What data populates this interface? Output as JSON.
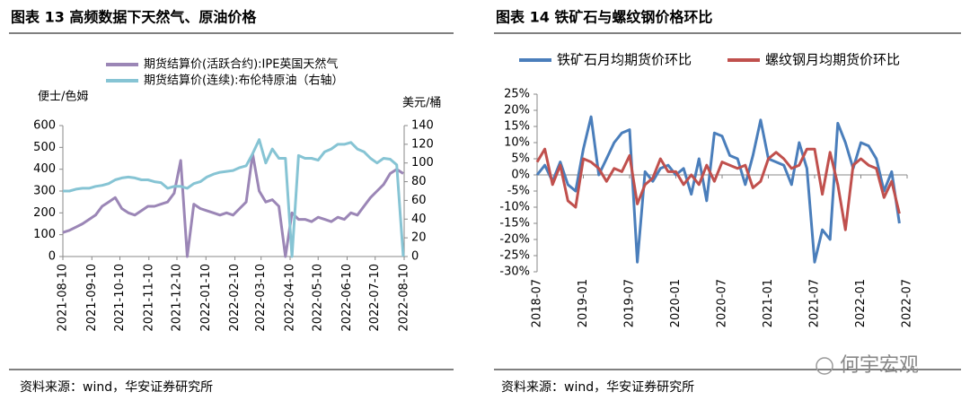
{
  "chart_data": [
    {
      "type": "line",
      "title": "图表 13 高频数据下天然气、原油价格",
      "ylabel": "便士/色姆",
      "y2label": "美元/桶",
      "x": [
        "2021-08-10",
        "2021-08-17",
        "2021-08-24",
        "2021-08-31",
        "2021-09-07",
        "2021-09-14",
        "2021-09-21",
        "2021-09-28",
        "2021-10-05",
        "2021-10-12",
        "2021-10-19",
        "2021-10-26",
        "2021-11-02",
        "2021-11-09",
        "2021-11-16",
        "2021-11-23",
        "2021-11-30",
        "2021-12-07",
        "2021-12-14",
        "2021-12-21",
        "2021-12-28",
        "2022-01-04",
        "2022-01-11",
        "2022-01-18",
        "2022-01-25",
        "2022-02-01",
        "2022-02-08",
        "2022-02-15",
        "2022-02-22",
        "2022-03-01",
        "2022-03-08",
        "2022-03-15",
        "2022-03-22",
        "2022-03-29",
        "2022-04-05",
        "2022-04-12",
        "2022-04-19",
        "2022-04-26",
        "2022-05-03",
        "2022-05-10",
        "2022-05-17",
        "2022-05-24",
        "2022-05-31",
        "2022-06-07",
        "2022-06-14",
        "2022-06-21",
        "2022-06-28",
        "2022-07-05",
        "2022-07-12",
        "2022-07-19",
        "2022-07-26",
        "2022-08-02",
        "2022-08-09"
      ],
      "series": [
        {
          "name": "期货结算价(活跃合约):IPE英国天然气",
          "color": "#9b86b6",
          "values": [
            110,
            120,
            135,
            150,
            170,
            190,
            230,
            250,
            270,
            220,
            200,
            190,
            210,
            230,
            230,
            240,
            250,
            290,
            440,
            0,
            240,
            220,
            210,
            200,
            190,
            200,
            190,
            220,
            250,
            470,
            300,
            250,
            260,
            230,
            0,
            200,
            170,
            170,
            160,
            180,
            170,
            160,
            180,
            170,
            200,
            190,
            230,
            270,
            300,
            330,
            380,
            400,
            380
          ]
        },
        {
          "name": "期货结算价(连续):布伦特原油（右轴）",
          "color": "#86c4d4",
          "axis": "y2",
          "values": [
            70,
            70,
            72,
            73,
            73,
            75,
            76,
            78,
            82,
            84,
            85,
            84,
            82,
            82,
            80,
            79,
            73,
            75,
            75,
            73,
            78,
            80,
            85,
            88,
            90,
            91,
            92,
            95,
            97,
            110,
            125,
            100,
            115,
            105,
            105,
            0,
            108,
            105,
            105,
            103,
            112,
            115,
            120,
            120,
            122,
            115,
            112,
            105,
            100,
            105,
            104,
            98,
            0
          ]
        }
      ],
      "xlim": [
        "2021-08-10",
        "2022-08-10"
      ],
      "xticks": [
        "2021-08-10",
        "2021-09-10",
        "2021-10-10",
        "2021-11-10",
        "2021-12-10",
        "2022-01-10",
        "2022-02-10",
        "2022-03-10",
        "2022-04-10",
        "2022-05-10",
        "2022-06-10",
        "2022-07-10",
        "2022-08-10"
      ],
      "ylim": [
        0,
        600
      ],
      "yticks": [
        0,
        100,
        200,
        300,
        400,
        500,
        600
      ],
      "y2lim": [
        0,
        140
      ],
      "y2ticks": [
        0,
        20,
        40,
        60,
        80,
        100,
        120,
        140
      ],
      "source": "资料来源：wind，华安证券研究所"
    },
    {
      "type": "line",
      "title": "图表 14 铁矿石与螺纹钢价格环比",
      "x": [
        "2018-07",
        "2018-08",
        "2018-09",
        "2018-10",
        "2018-11",
        "2018-12",
        "2019-01",
        "2019-02",
        "2019-03",
        "2019-04",
        "2019-05",
        "2019-06",
        "2019-07",
        "2019-08",
        "2019-09",
        "2019-10",
        "2019-11",
        "2019-12",
        "2020-01",
        "2020-02",
        "2020-03",
        "2020-04",
        "2020-05",
        "2020-06",
        "2020-07",
        "2020-08",
        "2020-09",
        "2020-10",
        "2020-11",
        "2020-12",
        "2021-01",
        "2021-02",
        "2021-03",
        "2021-04",
        "2021-05",
        "2021-06",
        "2021-07",
        "2021-08",
        "2021-09",
        "2021-10",
        "2021-11",
        "2021-12",
        "2022-01",
        "2022-02",
        "2022-03",
        "2022-04",
        "2022-05",
        "2022-06"
      ],
      "series": [
        {
          "name": "铁矿石月均期货价环比",
          "color": "#4a7ebb",
          "values": [
            0,
            3,
            -2,
            4,
            -3,
            -5,
            8,
            18,
            0,
            5,
            10,
            13,
            14,
            -27,
            1,
            -2,
            2,
            3,
            0,
            2,
            -6,
            5,
            -8,
            13,
            12,
            6,
            5,
            -3,
            6,
            17,
            5,
            4,
            3,
            -3,
            10,
            2,
            -27,
            -17,
            -20,
            16,
            10,
            2,
            10,
            9,
            5,
            -5,
            1,
            -15
          ]
        },
        {
          "name": "螺纹钢月均期货价环比",
          "color": "#c0504d",
          "values": [
            4,
            8,
            -3,
            3,
            -8,
            -10,
            5,
            4,
            2,
            -2,
            2,
            1,
            6,
            -9,
            -3,
            -1,
            5,
            1,
            1,
            -3,
            0,
            -3,
            3,
            -2,
            4,
            3,
            2,
            3,
            -4,
            -2,
            5,
            7,
            5,
            2,
            3,
            8,
            8,
            -6,
            7,
            -3,
            -17,
            3,
            5,
            3,
            2,
            -7,
            -2,
            -12
          ]
        }
      ],
      "xlim": [
        "2018-07",
        "2022-07"
      ],
      "xticks": [
        "2018-07",
        "2019-01",
        "2019-07",
        "2020-01",
        "2020-07",
        "2021-01",
        "2021-07",
        "2022-01",
        "2022-07"
      ],
      "ylim": [
        -30,
        25
      ],
      "yticks": [
        {
          "value": -30,
          "label": "-30%"
        },
        {
          "value": -25,
          "label": "-25%"
        },
        {
          "value": -20,
          "label": "-20%"
        },
        {
          "value": -15,
          "label": "-15%"
        },
        {
          "value": -10,
          "label": "-10%"
        },
        {
          "value": -5,
          "label": "-5%"
        },
        {
          "value": 0,
          "label": "0%"
        },
        {
          "value": 5,
          "label": "5%"
        },
        {
          "value": 10,
          "label": "10%"
        },
        {
          "value": 15,
          "label": "15%"
        },
        {
          "value": 20,
          "label": "20%"
        },
        {
          "value": 25,
          "label": "25%"
        }
      ],
      "source": "资料来源：wind，华安证券研究所"
    }
  ],
  "watermark": "何宇宏观"
}
